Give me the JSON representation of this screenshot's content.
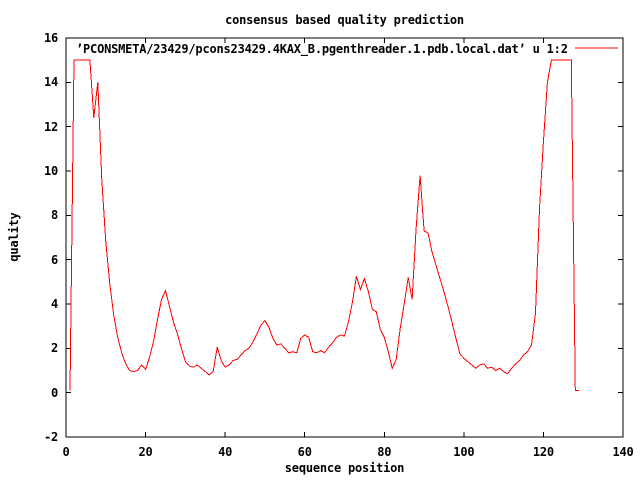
{
  "chart_data": {
    "type": "line",
    "title": "consensus based quality prediction",
    "legend": "’PCONSMETA/23429/pcons23429.4KAX_B.pgenthreader.1.pdb.local.dat’ u 1:2",
    "legend_position": "top-right-inside",
    "xlabel": "sequence position",
    "ylabel": "quality",
    "xlim": [
      0,
      140
    ],
    "ylim": [
      -2,
      16
    ],
    "xticks": [
      0,
      20,
      40,
      60,
      80,
      100,
      120,
      140
    ],
    "yticks": [
      -2,
      0,
      2,
      4,
      6,
      8,
      10,
      12,
      14,
      16
    ],
    "grid": false,
    "line_color": "#ff0000",
    "border_color": "#000000",
    "background_color": "#ffffff",
    "x_start": 1,
    "x_step": 1,
    "values": [
      0.1,
      15,
      15,
      15,
      15,
      15,
      12.4,
      14,
      9.6,
      6.8,
      4.9,
      3.5,
      2.5,
      1.8,
      1.3,
      1.0,
      0.95,
      1.0,
      1.25,
      1.05,
      1.6,
      2.3,
      3.3,
      4.2,
      4.6,
      3.9,
      3.2,
      2.65,
      2.0,
      1.4,
      1.2,
      1.15,
      1.25,
      1.1,
      0.95,
      0.8,
      0.95,
      2.05,
      1.45,
      1.15,
      1.25,
      1.45,
      1.5,
      1.7,
      1.9,
      2.0,
      2.3,
      2.65,
      3.05,
      3.25,
      2.95,
      2.45,
      2.15,
      2.2,
      2.0,
      1.8,
      1.85,
      1.8,
      2.45,
      2.6,
      2.5,
      1.85,
      1.8,
      1.9,
      1.8,
      2.05,
      2.25,
      2.5,
      2.6,
      2.55,
      3.2,
      4.1,
      5.25,
      4.65,
      5.15,
      4.55,
      3.75,
      3.65,
      2.85,
      2.5,
      1.85,
      1.1,
      1.5,
      2.9,
      4.0,
      5.2,
      4.2,
      7.4,
      9.8,
      7.3,
      7.2,
      6.35,
      5.75,
      5.15,
      4.55,
      3.9,
      3.2,
      2.45,
      1.75,
      1.55,
      1.4,
      1.25,
      1.1,
      1.25,
      1.3,
      1.1,
      1.15,
      1.0,
      1.1,
      0.95,
      0.85,
      1.1,
      1.3,
      1.45,
      1.7,
      1.85,
      2.15,
      3.6,
      8.3,
      11.3,
      14.0,
      15,
      15,
      15,
      15,
      15,
      15,
      0.1,
      0.1
    ]
  }
}
